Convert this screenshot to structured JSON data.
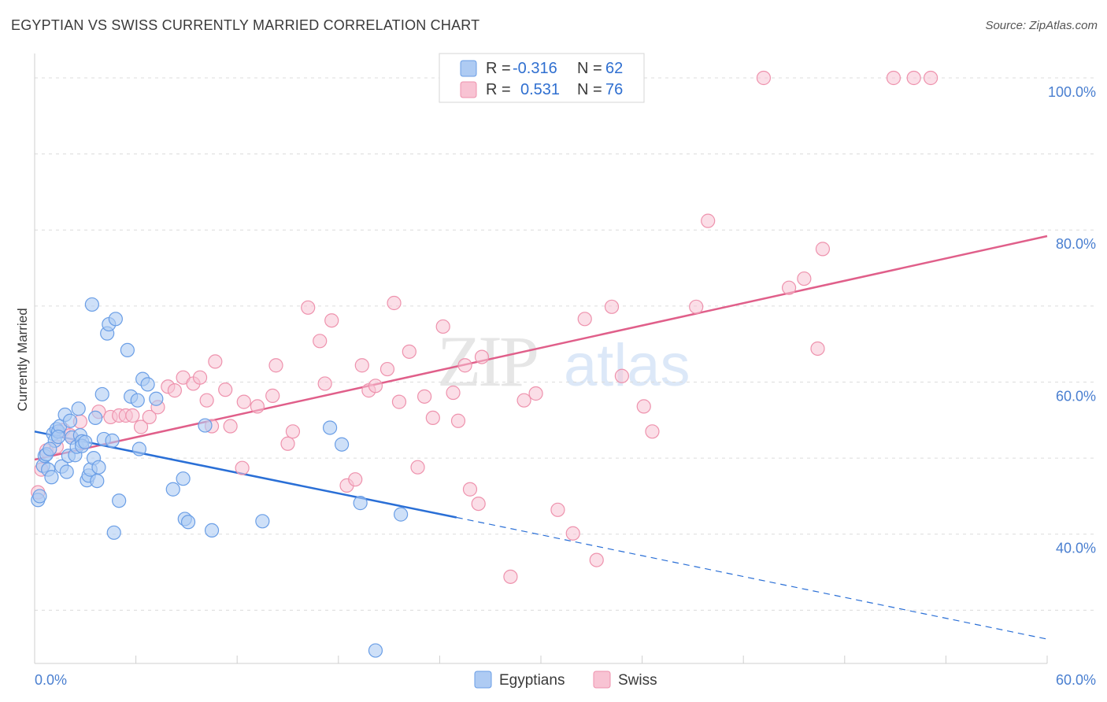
{
  "header": {
    "title": "EGYPTIAN VS SWISS CURRENTLY MARRIED CORRELATION CHART",
    "source": "Source: ZipAtlas.com"
  },
  "watermark": {
    "zip": "ZIP",
    "atlas": "atlas"
  },
  "colors": {
    "blue_fill": "#aecbf3",
    "blue_stroke": "#6a9ee6",
    "blue_line": "#2a6fd6",
    "pink_fill": "#f8c3d3",
    "pink_stroke": "#ee92ad",
    "pink_line": "#e05f8a",
    "tick_text": "#4a7fd0"
  },
  "legend": {
    "rows": [
      {
        "r_label": "R =",
        "r_value": "-0.316",
        "n_label": "N =",
        "n_value": "62"
      },
      {
        "r_label": "R =",
        "r_value": "0.531",
        "n_label": "N =",
        "n_value": "76"
      }
    ]
  },
  "bottom_legend": {
    "items": [
      "Egyptians",
      "Swiss"
    ]
  },
  "chart_data": {
    "type": "scatter",
    "ylabel": "Currently Married",
    "xlim": [
      0,
      60
    ],
    "ylim": [
      23,
      103
    ],
    "x_tick_labels": [
      "0.0%",
      "60.0%"
    ],
    "y_ticks": [
      40,
      60,
      80,
      100
    ],
    "y_tick_labels": [
      "40.0%",
      "60.0%",
      "80.0%",
      "100.0%"
    ],
    "grid": "horizontal dashed",
    "legend_position": "top-center",
    "series": [
      {
        "name": "Egyptians",
        "r": -0.316,
        "n": 62,
        "trend": {
          "x0": 0,
          "y0": 53.5,
          "x1": 25,
          "y1": 42.2,
          "dashed_to_x": 60,
          "dashed_y1": 26.2
        },
        "points": [
          [
            0.2,
            44.5
          ],
          [
            0.3,
            45.0
          ],
          [
            0.5,
            49.0
          ],
          [
            0.6,
            50.3
          ],
          [
            0.7,
            50.5
          ],
          [
            0.8,
            48.5
          ],
          [
            1.0,
            47.5
          ],
          [
            1.1,
            53.2
          ],
          [
            1.2,
            52.3
          ],
          [
            1.3,
            53.8
          ],
          [
            1.4,
            53.5
          ],
          [
            1.5,
            54.2
          ],
          [
            1.6,
            48.9
          ],
          [
            1.8,
            55.7
          ],
          [
            1.9,
            48.2
          ],
          [
            2.0,
            50.3
          ],
          [
            2.1,
            54.9
          ],
          [
            2.2,
            52.7
          ],
          [
            2.4,
            50.4
          ],
          [
            2.5,
            51.5
          ],
          [
            2.6,
            56.5
          ],
          [
            2.7,
            53.0
          ],
          [
            2.8,
            52.2
          ],
          [
            3.1,
            47.1
          ],
          [
            3.2,
            47.7
          ],
          [
            3.3,
            48.5
          ],
          [
            3.4,
            70.2
          ],
          [
            3.5,
            50.0
          ],
          [
            3.6,
            55.3
          ],
          [
            3.7,
            47.0
          ],
          [
            3.8,
            48.8
          ],
          [
            4.0,
            58.4
          ],
          [
            4.1,
            52.5
          ],
          [
            4.3,
            66.4
          ],
          [
            4.4,
            67.6
          ],
          [
            4.6,
            52.3
          ],
          [
            4.7,
            40.2
          ],
          [
            4.8,
            68.3
          ],
          [
            5.0,
            44.4
          ],
          [
            5.5,
            64.2
          ],
          [
            5.7,
            58.1
          ],
          [
            6.1,
            57.6
          ],
          [
            6.2,
            51.2
          ],
          [
            6.4,
            60.4
          ],
          [
            6.7,
            59.7
          ],
          [
            7.2,
            57.8
          ],
          [
            8.2,
            45.9
          ],
          [
            8.8,
            47.3
          ],
          [
            8.9,
            42.0
          ],
          [
            9.1,
            41.6
          ],
          [
            10.1,
            54.3
          ],
          [
            10.5,
            40.5
          ],
          [
            13.5,
            41.7
          ],
          [
            17.5,
            54.0
          ],
          [
            18.2,
            51.8
          ],
          [
            19.3,
            44.1
          ],
          [
            20.2,
            24.7
          ],
          [
            21.7,
            42.6
          ],
          [
            0.9,
            51.2
          ],
          [
            1.4,
            52.8
          ],
          [
            2.8,
            51.6
          ],
          [
            3.0,
            52.1
          ]
        ]
      },
      {
        "name": "Swiss",
        "r": 0.531,
        "n": 76,
        "trend": {
          "x0": 0,
          "y0": 49.8,
          "x1": 60,
          "y1": 79.2
        },
        "points": [
          [
            0.2,
            45.5
          ],
          [
            0.4,
            48.5
          ],
          [
            0.7,
            51.0
          ],
          [
            1.3,
            51.5
          ],
          [
            1.7,
            53.7
          ],
          [
            2.1,
            53.0
          ],
          [
            2.7,
            54.8
          ],
          [
            3.8,
            56.1
          ],
          [
            4.5,
            55.4
          ],
          [
            5.0,
            55.6
          ],
          [
            5.4,
            55.6
          ],
          [
            5.8,
            55.6
          ],
          [
            6.3,
            54.1
          ],
          [
            6.8,
            55.4
          ],
          [
            7.3,
            56.7
          ],
          [
            7.9,
            59.4
          ],
          [
            8.3,
            58.9
          ],
          [
            8.8,
            60.6
          ],
          [
            9.4,
            59.8
          ],
          [
            9.8,
            60.6
          ],
          [
            10.2,
            57.6
          ],
          [
            10.5,
            54.2
          ],
          [
            10.7,
            62.7
          ],
          [
            11.3,
            59.0
          ],
          [
            11.6,
            54.2
          ],
          [
            12.3,
            48.7
          ],
          [
            12.4,
            57.4
          ],
          [
            13.2,
            56.8
          ],
          [
            14.1,
            58.2
          ],
          [
            14.3,
            62.2
          ],
          [
            15.0,
            51.9
          ],
          [
            15.3,
            53.5
          ],
          [
            16.2,
            69.8
          ],
          [
            16.9,
            65.4
          ],
          [
            17.2,
            59.8
          ],
          [
            17.6,
            68.1
          ],
          [
            18.5,
            46.4
          ],
          [
            19.0,
            47.2
          ],
          [
            19.4,
            62.2
          ],
          [
            19.8,
            58.9
          ],
          [
            20.2,
            59.5
          ],
          [
            20.9,
            61.7
          ],
          [
            21.3,
            70.4
          ],
          [
            21.6,
            57.4
          ],
          [
            22.2,
            64.0
          ],
          [
            22.7,
            48.8
          ],
          [
            23.1,
            58.1
          ],
          [
            23.6,
            55.3
          ],
          [
            24.2,
            67.3
          ],
          [
            24.8,
            58.6
          ],
          [
            25.1,
            54.9
          ],
          [
            25.5,
            62.2
          ],
          [
            25.8,
            45.9
          ],
          [
            26.3,
            44.0
          ],
          [
            26.5,
            63.3
          ],
          [
            28.2,
            34.4
          ],
          [
            29.0,
            57.6
          ],
          [
            29.7,
            58.5
          ],
          [
            31.0,
            43.2
          ],
          [
            31.9,
            40.1
          ],
          [
            32.6,
            68.3
          ],
          [
            33.3,
            36.6
          ],
          [
            34.2,
            69.9
          ],
          [
            34.8,
            60.8
          ],
          [
            36.1,
            56.8
          ],
          [
            36.6,
            53.5
          ],
          [
            39.2,
            69.9
          ],
          [
            39.9,
            81.2
          ],
          [
            43.2,
            100.0
          ],
          [
            44.7,
            72.4
          ],
          [
            45.6,
            73.6
          ],
          [
            46.4,
            64.4
          ],
          [
            46.7,
            77.5
          ],
          [
            50.9,
            100.0
          ],
          [
            52.1,
            100.0
          ],
          [
            53.1,
            100.0
          ]
        ]
      }
    ]
  }
}
